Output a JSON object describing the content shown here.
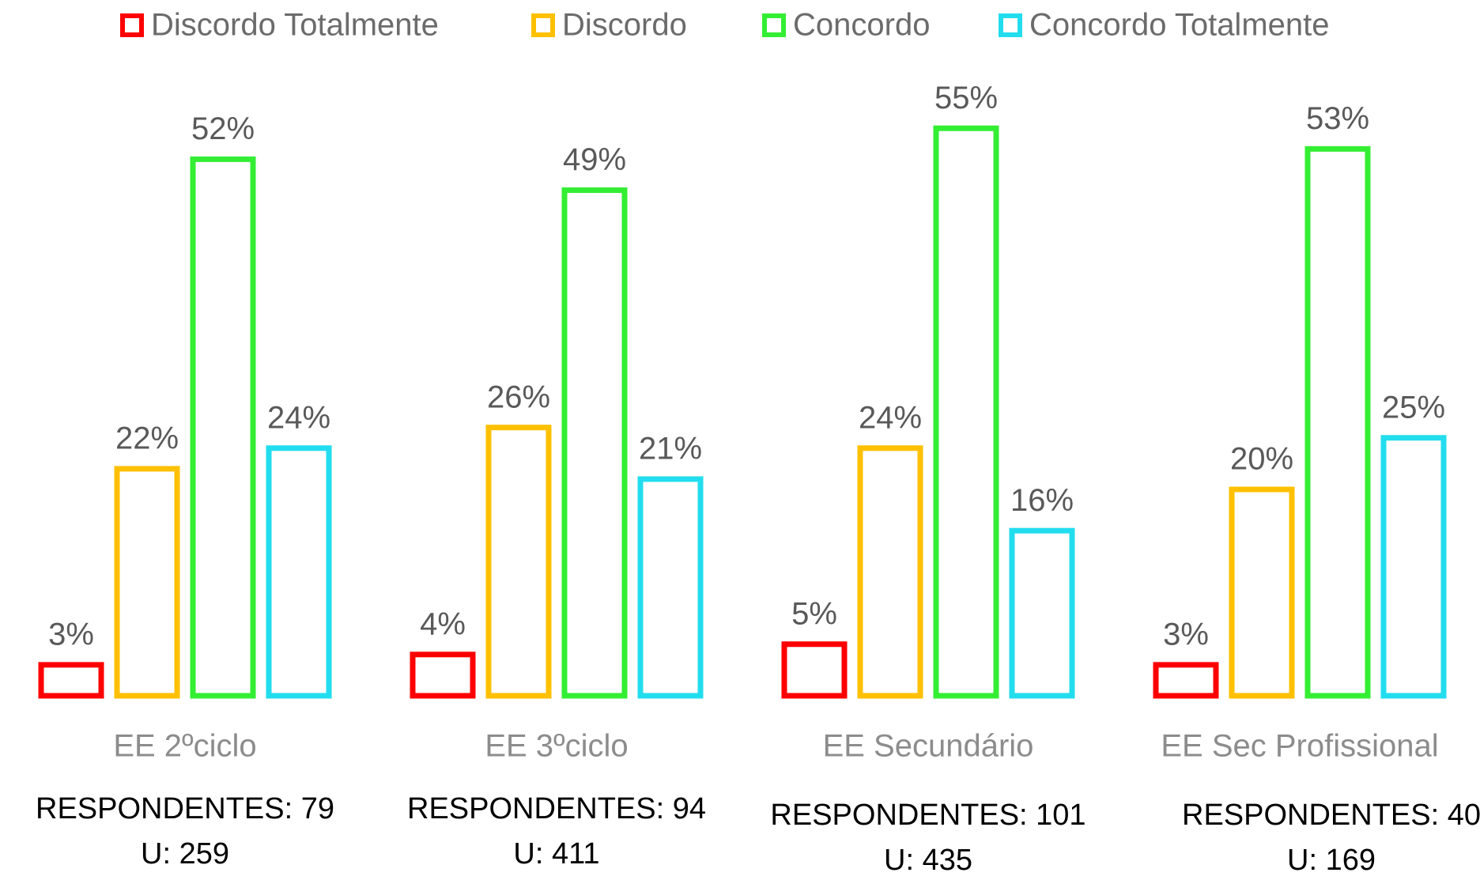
{
  "chart_data": {
    "type": "bar",
    "categories": [
      "EE 2ºciclo",
      "EE 3ºciclo",
      "EE Secundário",
      "EE Sec Profissional"
    ],
    "series": [
      {
        "name": "Discordo Totalmente",
        "color": "#ff0000",
        "values": [
          3,
          4,
          5,
          3
        ],
        "value_labels": [
          "3%",
          "4%",
          "5%",
          "3%"
        ]
      },
      {
        "name": "Discordo",
        "color": "#ffc000",
        "values": [
          22,
          26,
          24,
          20
        ],
        "value_labels": [
          "22%",
          "26%",
          "24%",
          "20%"
        ]
      },
      {
        "name": "Concordo",
        "color": "#33ee33",
        "values": [
          52,
          49,
          55,
          53
        ],
        "value_labels": [
          "52%",
          "49%",
          "55%",
          "53%"
        ]
      },
      {
        "name": "Concordo Totalmente",
        "color": "#22ddee",
        "values": [
          24,
          21,
          16,
          25
        ],
        "value_labels": [
          "24%",
          "21%",
          "16%",
          "25%"
        ]
      }
    ],
    "annotations": [
      [
        "RESPONDENTES: 79",
        "U: 259"
      ],
      [
        "RESPONDENTES: 94",
        "U: 411"
      ],
      [
        "RESPONDENTES: 101",
        "U: 435"
      ],
      [
        "RESPONDENTES: 40",
        "U: 169"
      ]
    ],
    "legend": "top"
  }
}
